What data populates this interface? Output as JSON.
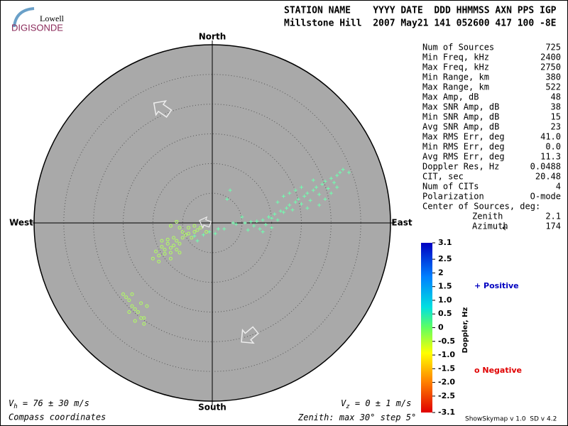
{
  "logo": {
    "top": "Lowell",
    "bottom": "DIGISONDE"
  },
  "header": {
    "line1": "STATION NAME    YYYY DATE  DDD HHMMSS AXN PPS IGP",
    "line2": "Millstone Hill  2007 May21 141 052600 417 100 -8E"
  },
  "compass": {
    "north": "North",
    "south": "South",
    "west": "West",
    "east": "East"
  },
  "stats": [
    [
      "Num of Sources",
      "725"
    ],
    [
      "Min Freq, kHz",
      "2400"
    ],
    [
      "Max Freq, kHz",
      "2750"
    ],
    [
      "Min Range, km",
      "380"
    ],
    [
      "Max Range, km",
      "522"
    ],
    [
      "Max Amp, dB",
      "48"
    ],
    [
      "Max SNR Amp, dB",
      "38"
    ],
    [
      "Min SNR Amp, dB",
      "15"
    ],
    [
      "Avg SNR Amp, dB",
      "23"
    ],
    [
      "Max RMS Err, deg",
      "41.0"
    ],
    [
      "Min RMS Err, deg",
      "0.0"
    ],
    [
      "Avg RMS Err, deg",
      "11.3"
    ],
    [
      "Doppler Res, Hz",
      "0.0488"
    ],
    [
      "CIT, sec",
      "20.48"
    ],
    [
      "Num of CITs",
      "4"
    ],
    [
      "Polarization",
      "O-mode"
    ],
    [
      "Center of Sources, deg:"
    ],
    [
      "Zenith",
      "2.1"
    ],
    [
      "Azimuth",
      "174"
    ]
  ],
  "colorbar": {
    "label": "Doppler, Hz",
    "lim": [
      -3.1,
      3.1
    ],
    "ticks": [
      3.1,
      2.5,
      2,
      1.5,
      {
        "value": 1,
        "label": "1.0"
      },
      0.5,
      0,
      -0.5,
      {
        "value": -1,
        "label": "-1.0"
      },
      -1.5,
      {
        "value": -2,
        "label": "-2.0"
      },
      -2.5,
      -3.1
    ]
  },
  "legend": {
    "positive": "+ Positive",
    "negative": "o Negative"
  },
  "points": {
    "positive": {
      "color": "#70ffb0",
      "values": [
        [
          5.5,
          0
        ],
        [
          6.5,
          0.2
        ],
        [
          7,
          -0.5
        ],
        [
          7.5,
          0.3
        ],
        [
          8,
          -1
        ],
        [
          8.5,
          0.5
        ],
        [
          9,
          -0.3
        ],
        [
          9.5,
          1
        ],
        [
          10,
          0.8
        ],
        [
          10.5,
          1.5
        ],
        [
          11,
          0.5
        ],
        [
          11.5,
          2
        ],
        [
          12,
          1.8
        ],
        [
          12.5,
          2.5
        ],
        [
          13,
          3
        ],
        [
          13.5,
          2.2
        ],
        [
          14,
          3.5
        ],
        [
          14.5,
          4
        ],
        [
          15,
          3.2
        ],
        [
          15.5,
          4.5
        ],
        [
          16,
          5
        ],
        [
          16.5,
          3.8
        ],
        [
          17,
          5.5
        ],
        [
          17.5,
          6
        ],
        [
          18,
          4.8
        ],
        [
          18.5,
          6.5
        ],
        [
          19,
          7
        ],
        [
          19.5,
          5.8
        ],
        [
          20,
          7.5
        ],
        [
          20.5,
          6.8
        ],
        [
          21,
          8
        ],
        [
          21.5,
          8.5
        ],
        [
          22,
          9
        ],
        [
          15,
          6
        ],
        [
          17,
          7.2
        ],
        [
          13,
          5
        ],
        [
          16,
          2.5
        ],
        [
          18,
          3
        ],
        [
          11,
          3.5
        ],
        [
          10,
          -0.8
        ],
        [
          8.5,
          -1.5
        ],
        [
          3,
          5.5
        ],
        [
          2.5,
          4
        ],
        [
          5,
          1
        ],
        [
          4,
          -0.2
        ],
        [
          2,
          -1
        ],
        [
          0.5,
          -1.8
        ],
        [
          -0.5,
          -1.5
        ],
        [
          -1.5,
          -2
        ],
        [
          -2.5,
          -3
        ],
        [
          -3,
          -2.2
        ],
        [
          1,
          -1
        ],
        [
          3.5,
          0
        ],
        [
          6,
          -1.2
        ],
        [
          12,
          4.5
        ],
        [
          14,
          5.5
        ],
        [
          19,
          4
        ],
        [
          20,
          5
        ],
        [
          23,
          8.5
        ],
        [
          21,
          6
        ]
      ]
    },
    "negative": {
      "color": "#b0ff60",
      "values": [
        [
          -8.5,
          -4
        ],
        [
          -8,
          -4.5
        ],
        [
          -7.5,
          -3.5
        ],
        [
          -7,
          -4.2
        ],
        [
          -6.5,
          -3.8
        ],
        [
          -6,
          -3
        ],
        [
          -5.5,
          -3.5
        ],
        [
          -5,
          -2.5
        ],
        [
          -4.5,
          -2
        ],
        [
          -4,
          -1.8
        ],
        [
          -3.5,
          -2.5
        ],
        [
          -3,
          -1.5
        ],
        [
          -2.5,
          -1.2
        ],
        [
          -6,
          -4.5
        ],
        [
          -7,
          -5
        ],
        [
          -8,
          -5.2
        ],
        [
          -9,
          -5.5
        ],
        [
          -9.5,
          -4.8
        ],
        [
          -10,
          -6
        ],
        [
          -7.5,
          -2.8
        ],
        [
          -6.5,
          -2.5
        ],
        [
          -5,
          -1.5
        ],
        [
          -4,
          -0.8
        ],
        [
          -6,
          0.2
        ],
        [
          -7,
          -0.5
        ],
        [
          -5.5,
          -0.8
        ],
        [
          -3,
          -0.5
        ],
        [
          -2,
          -0.8
        ],
        [
          -1,
          -1.5
        ],
        [
          -8.5,
          -3
        ],
        [
          -9,
          -6.5
        ],
        [
          -7,
          -6
        ],
        [
          -5.5,
          -5
        ],
        [
          -15,
          -12
        ],
        [
          -14.5,
          -12.5
        ],
        [
          -14,
          -13
        ],
        [
          -13.5,
          -14
        ],
        [
          -13,
          -14.5
        ],
        [
          -12.5,
          -15
        ],
        [
          -12,
          -16
        ],
        [
          -11.5,
          -17
        ],
        [
          -14,
          -15
        ],
        [
          -13,
          -16.5
        ],
        [
          -12,
          -13.5
        ],
        [
          -11,
          -14
        ],
        [
          -13.5,
          -12
        ],
        [
          -11.5,
          -16
        ]
      ]
    }
  },
  "footer": {
    "vh": {
      "v": "V",
      "sub": "h",
      "rest": " = 76 ± 30 m/s"
    },
    "vz": {
      "v": "V",
      "sub": "z",
      "rest": " = 0 ± 1 m/s"
    },
    "coords": "Compass coordinates",
    "zenith": {
      "prefix": "Zenith: max ",
      "max": 30,
      "mid": "° step ",
      "step": 5,
      "suffix": "°"
    },
    "version": "ShowSkymap v 1.0  SD v 4.2"
  }
}
